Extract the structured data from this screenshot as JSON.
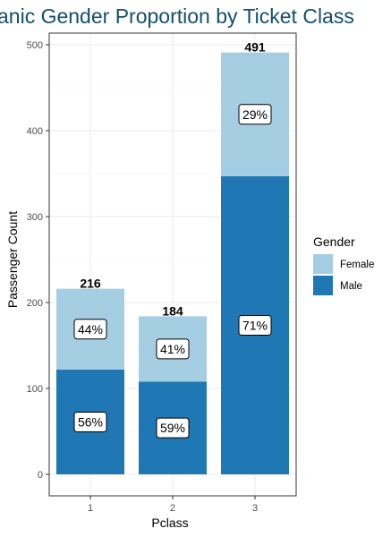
{
  "chart_data": {
    "type": "bar",
    "stacked": true,
    "title": "anic Gender Proportion by Ticket Class",
    "xlabel": "Pclass",
    "ylabel": "Passenger Count",
    "categories": [
      "1",
      "2",
      "3"
    ],
    "series": [
      {
        "name": "Male",
        "values": [
          122,
          108,
          347
        ],
        "percent_labels": [
          "56%",
          "59%",
          "71%"
        ],
        "color": "#1f78b4"
      },
      {
        "name": "Female",
        "values": [
          94,
          76,
          144
        ],
        "percent_labels": [
          "44%",
          "41%",
          "29%"
        ],
        "color": "#a6cee3"
      }
    ],
    "totals": [
      216,
      184,
      491
    ],
    "ylim": [
      0,
      520
    ],
    "yticks": [
      0,
      100,
      200,
      300,
      400,
      500
    ],
    "grid": true,
    "legend": {
      "title": "Gender",
      "position": "right",
      "entries": [
        "Female",
        "Male"
      ]
    }
  }
}
